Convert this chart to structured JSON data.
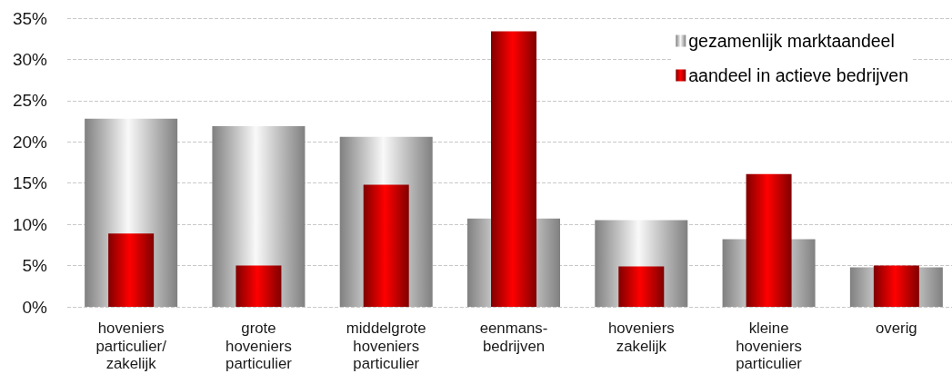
{
  "chart_data": {
    "type": "bar",
    "categories": [
      "hoveniers\nparticulier/\nzakelijk",
      "grote\nhoveniers\nparticulier",
      "middelgrote\nhoveniers\nparticulier",
      "eenmans-\nbedrijven",
      "hoveniers\nzakelijk",
      "kleine\nhoveniers\nparticulier",
      "overig"
    ],
    "series": [
      {
        "name": "gezamenlijk marktaandeel",
        "color": "#808080",
        "values": [
          22.8,
          21.9,
          20.6,
          10.7,
          10.5,
          8.2,
          4.8
        ]
      },
      {
        "name": "aandeel in actieve bedrijven",
        "color": "#ff0000",
        "values": [
          8.9,
          5.0,
          14.8,
          33.4,
          4.9,
          16.1,
          5.0
        ]
      }
    ],
    "ylim": [
      0,
      35
    ],
    "yticks": [
      {
        "value": 0,
        "label": "0%"
      },
      {
        "value": 5,
        "label": "5%"
      },
      {
        "value": 10,
        "label": "10%"
      },
      {
        "value": 15,
        "label": "15%"
      },
      {
        "value": 20,
        "label": "20%"
      },
      {
        "value": 25,
        "label": "25%"
      },
      {
        "value": 30,
        "label": "30%"
      },
      {
        "value": 35,
        "label": "35%"
      }
    ],
    "grid": "y",
    "legend": "top right"
  }
}
